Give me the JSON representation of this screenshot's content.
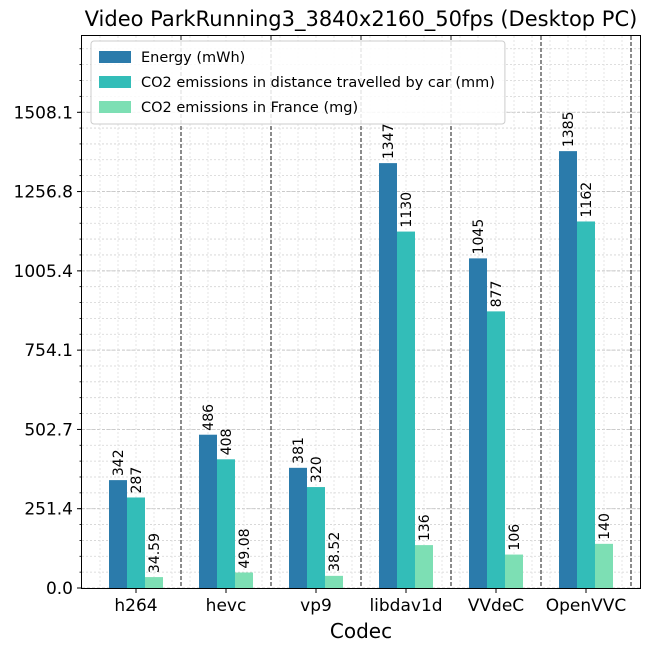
{
  "chart_data": {
    "type": "bar",
    "title": "Video ParkRunning3_3840x2160_50fps (Desktop PC)",
    "xlabel": "Codec",
    "ylabel": "",
    "categories": [
      "h264",
      "hevc",
      "vp9",
      "libdav1d",
      "VVdeC",
      "OpenVVC"
    ],
    "series": [
      {
        "name": "Energy (mWh)",
        "color": "#2b7bab",
        "values": [
          342,
          486,
          381,
          1347,
          1045,
          1385
        ],
        "labels": [
          "342",
          "486",
          "381",
          "1347",
          "1045",
          "1385"
        ]
      },
      {
        "name": "CO2 emissions in distance travelled by car (mm)",
        "color": "#33bdb8",
        "values": [
          287,
          408,
          320,
          1130,
          877,
          1162
        ],
        "labels": [
          "287",
          "408",
          "320",
          "1130",
          "877",
          "1162"
        ]
      },
      {
        "name": "CO2 emissions in France (mg)",
        "color": "#7ddfb4",
        "values": [
          34.59,
          49.08,
          38.52,
          136,
          106,
          140
        ],
        "labels": [
          "34.59",
          "49.08",
          "38.52",
          "136",
          "106",
          "140"
        ]
      }
    ],
    "yticks": [
      0.0,
      251.4,
      502.7,
      754.1,
      1005.4,
      1256.8,
      1508.1
    ],
    "ytick_labels": [
      "0.0",
      "251.4",
      "502.7",
      "754.1",
      "1005.4",
      "1256.8",
      "1508.1"
    ],
    "ylim": [
      0,
      1750
    ],
    "grid": true,
    "legend_position": "upper-left"
  }
}
